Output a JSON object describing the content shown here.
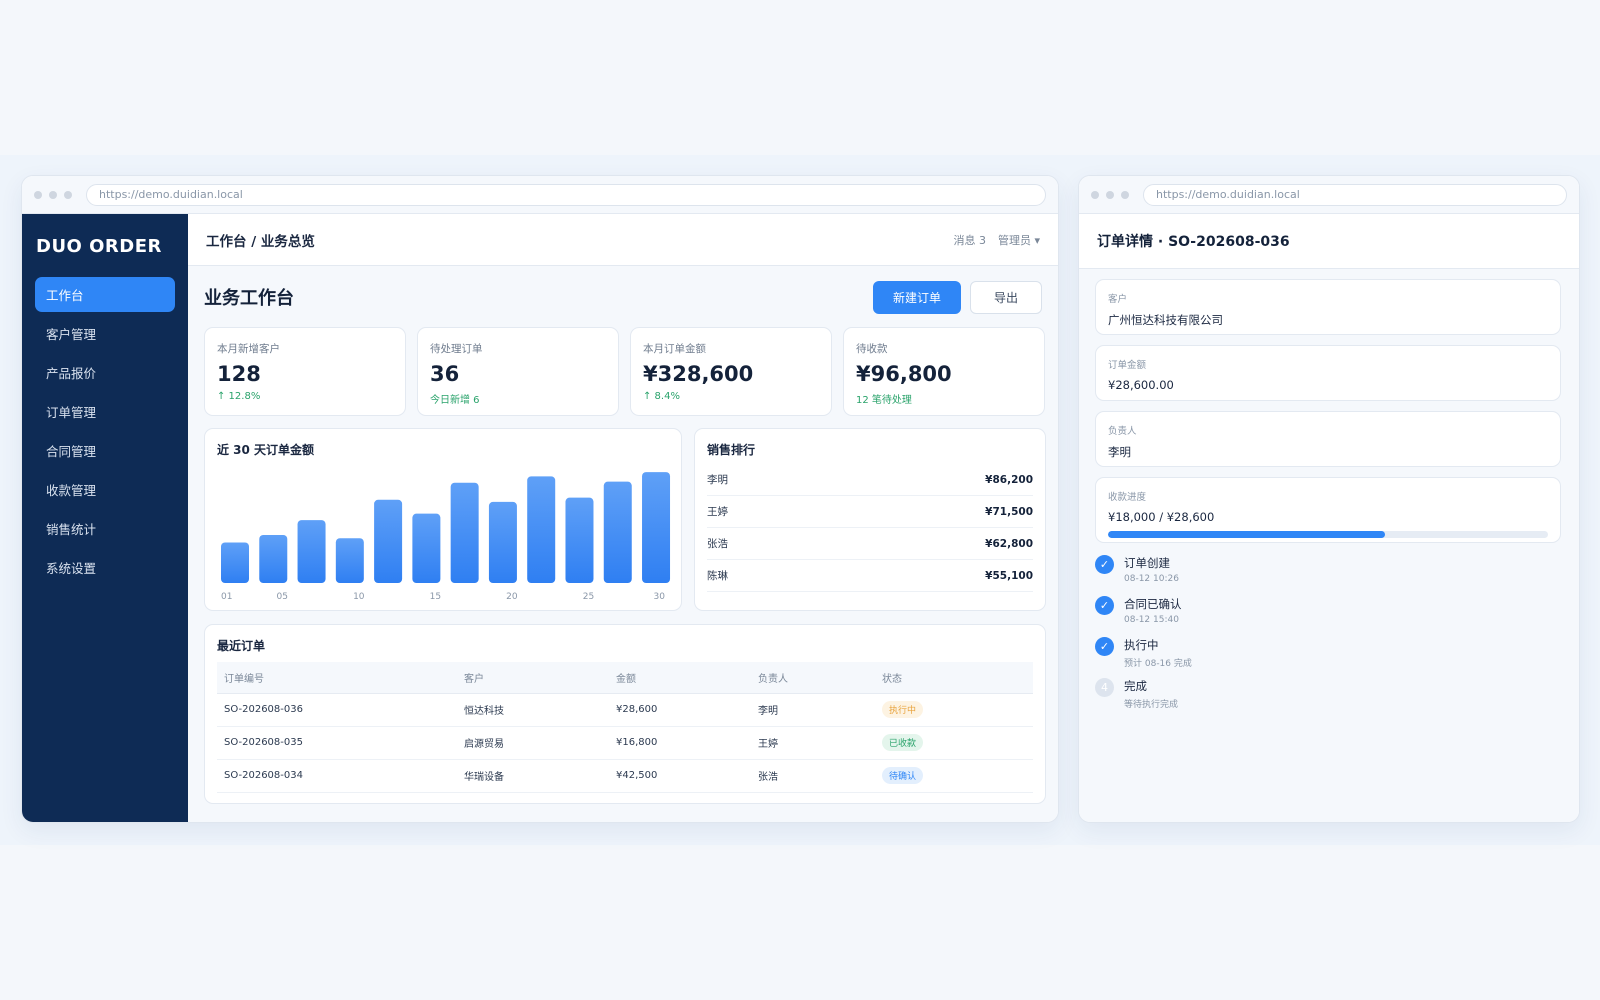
{
  "browser": {
    "url": "https://demo.duidian.local"
  },
  "sidebar": {
    "brand": "DUO ORDER",
    "items": [
      {
        "label": "工作台",
        "active": true
      },
      {
        "label": "客户管理"
      },
      {
        "label": "产品报价"
      },
      {
        "label": "订单管理"
      },
      {
        "label": "合同管理"
      },
      {
        "label": "收款管理"
      },
      {
        "label": "销售统计"
      },
      {
        "label": "系统设置"
      }
    ]
  },
  "header": {
    "breadcrumb": "工作台 / 业务总览",
    "messages": "消息 3",
    "user": "管理员 ▾"
  },
  "page": {
    "title": "业务工作台",
    "new_order": "新建订单",
    "export": "导出"
  },
  "stats": [
    {
      "label": "本月新增客户",
      "value": "128",
      "note": "↑ 12.8%"
    },
    {
      "label": "待处理订单",
      "value": "36",
      "note": "今日新增 6"
    },
    {
      "label": "本月订单金额",
      "value": "¥328,600",
      "note": "↑ 8.4%"
    },
    {
      "label": "待收款",
      "value": "¥96,800",
      "note": "12 笔待处理"
    }
  ],
  "chart_title": "近 30 天订单金额",
  "chart_data": {
    "type": "bar",
    "x": [
      1,
      3.5,
      6,
      8.5,
      11,
      13.5,
      16,
      18.5,
      21,
      23.5,
      26,
      28.5
    ],
    "values": [
      38,
      45,
      59,
      42,
      78,
      65,
      94,
      76,
      100,
      80,
      95,
      104
    ],
    "xticks": [
      "01",
      "05",
      "10",
      "15",
      "20",
      "25",
      "30"
    ],
    "xlim": [
      1,
      30
    ],
    "ylim": [
      0,
      105
    ],
    "color": "#3d8ef5"
  },
  "ranking": {
    "title": "销售排行",
    "rows": [
      {
        "name": "李明",
        "value": "¥86,200"
      },
      {
        "name": "王婷",
        "value": "¥71,500"
      },
      {
        "name": "张浩",
        "value": "¥62,800"
      },
      {
        "name": "陈琳",
        "value": "¥55,100"
      }
    ]
  },
  "orders": {
    "title": "最近订单",
    "columns": [
      "订单编号",
      "客户",
      "金额",
      "负责人",
      "状态"
    ],
    "rows": [
      {
        "id": "SO-202608-036",
        "customer": "恒达科技",
        "amount": "¥28,600",
        "owner": "李明",
        "status": "执行中",
        "status_color": "#e8a33d",
        "status_bg": "#fdf3e2"
      },
      {
        "id": "SO-202608-035",
        "customer": "启源贸易",
        "amount": "¥16,800",
        "owner": "王婷",
        "status": "已收款",
        "status_color": "#2aa36b",
        "status_bg": "#e4f5ec"
      },
      {
        "id": "SO-202608-034",
        "customer": "华瑞设备",
        "amount": "¥42,500",
        "owner": "张浩",
        "status": "待确认",
        "status_color": "#2f86f6",
        "status_bg": "#e3effd"
      }
    ]
  },
  "detail": {
    "title": "订单详情 · SO-202608-036",
    "fields": [
      {
        "label": "客户",
        "value": "广州恒达科技有限公司"
      },
      {
        "label": "订单金额",
        "value": "¥28,600.00"
      },
      {
        "label": "负责人",
        "value": "李明"
      }
    ],
    "progress": {
      "label": "收款进度",
      "value": "¥18,000 / ¥28,600",
      "fraction": 0.63
    },
    "steps": [
      {
        "title": "订单创建",
        "sub": "08-12 10:26",
        "done": true,
        "mark": "✓"
      },
      {
        "title": "合同已确认",
        "sub": "08-12 15:40",
        "done": true,
        "mark": "✓"
      },
      {
        "title": "执行中",
        "sub": "预计 08-16 完成",
        "done": true,
        "mark": "✓"
      },
      {
        "title": "完成",
        "sub": "等待执行完成",
        "done": false,
        "mark": "4"
      }
    ]
  }
}
